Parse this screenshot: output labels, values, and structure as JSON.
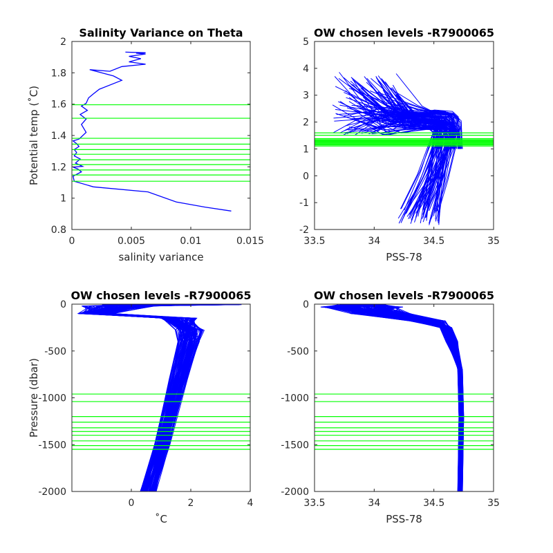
{
  "colors": {
    "profile": "#0000ff",
    "level": "#00ff00",
    "axis": "#262626",
    "background": "#ffffff"
  },
  "chart_data": [
    {
      "type": "line",
      "title": "Salinity Variance on Theta",
      "xlabel": "salinity variance",
      "ylabel": "Potential temp (˚C)",
      "xlim": [
        0,
        0.015
      ],
      "ylim": [
        0.8,
        2
      ],
      "xticks": [
        "0",
        "0.005",
        "0.01",
        "0.015"
      ],
      "yticks": [
        "0.8",
        "1",
        "1.2",
        "1.4",
        "1.6",
        "1.8",
        "2"
      ],
      "grid": false,
      "series": [
        {
          "color": "#0000ff",
          "points": [
            [
              0.0134,
              0.918
            ],
            [
              0.0112,
              0.943
            ],
            [
              0.0088,
              0.975
            ],
            [
              0.0064,
              1.04
            ],
            [
              0.0018,
              1.072
            ],
            [
              0.0002,
              1.108
            ],
            [
              0.0001,
              1.14
            ],
            [
              0.0008,
              1.168
            ],
            [
              0.0005,
              1.186
            ],
            [
              0.0001,
              1.198
            ],
            [
              0.0009,
              1.203
            ],
            [
              0.0003,
              1.224
            ],
            [
              0.0007,
              1.25
            ],
            [
              0.0002,
              1.27
            ],
            [
              0.0004,
              1.292
            ],
            [
              0.0002,
              1.31
            ],
            [
              0.0006,
              1.33
            ],
            [
              0.0004,
              1.348
            ],
            [
              0.0001,
              1.365
            ],
            [
              0.0006,
              1.377
            ],
            [
              0.0012,
              1.42
            ],
            [
              0.0008,
              1.47
            ],
            [
              0.0012,
              1.505
            ],
            [
              0.0007,
              1.534
            ],
            [
              0.0013,
              1.56
            ],
            [
              0.0008,
              1.588
            ],
            [
              0.0012,
              1.605
            ],
            [
              0.0014,
              1.64
            ],
            [
              0.0018,
              1.665
            ],
            [
              0.0023,
              1.695
            ],
            [
              0.0042,
              1.752
            ],
            [
              0.0035,
              1.78
            ],
            [
              0.0015,
              1.82
            ],
            [
              0.0032,
              1.81
            ],
            [
              0.0042,
              1.84
            ],
            [
              0.0062,
              1.855
            ],
            [
              0.0048,
              1.87
            ],
            [
              0.0058,
              1.89
            ],
            [
              0.0048,
              1.905
            ],
            [
              0.0062,
              1.92
            ],
            [
              0.0054,
              1.925
            ],
            [
              0.0062,
              1.928
            ],
            [
              0.0045,
              1.932
            ]
          ]
        }
      ],
      "levels": [
        1.108,
        1.148,
        1.18,
        1.214,
        1.245,
        1.28,
        1.31,
        1.345,
        1.382,
        1.51,
        1.596
      ]
    },
    {
      "type": "line",
      "title": "OW chosen levels -R7900065",
      "xlabel": "PSS-78",
      "ylabel": "",
      "xlim": [
        33.5,
        35
      ],
      "ylim": [
        -2,
        5
      ],
      "xticks": [
        "33.5",
        "34",
        "34.5",
        "35"
      ],
      "yticks": [
        "-2",
        "-1",
        "0",
        "1",
        "2",
        "3",
        "4",
        "5"
      ],
      "grid": false,
      "series_description": "many theta-salinity profiles",
      "levels": [
        1.108,
        1.148,
        1.18,
        1.214,
        1.245,
        1.28,
        1.31,
        1.345,
        1.382,
        1.51,
        1.596
      ]
    },
    {
      "type": "line",
      "title": "OW chosen levels -R7900065",
      "xlabel": "˚C",
      "ylabel": "Pressure (dbar)",
      "xlim": [
        -2,
        4
      ],
      "ylim": [
        -2000,
        0
      ],
      "xticks": [
        "0",
        "2",
        "4"
      ],
      "yticks": [
        "-2000",
        "-1500",
        "-1000",
        "-500",
        "0"
      ],
      "grid": false,
      "levels": [
        -960,
        -1040,
        -1200,
        -1260,
        -1320,
        -1360,
        -1400,
        -1460,
        -1510,
        -1550
      ]
    },
    {
      "type": "line",
      "title": "OW chosen levels -R7900065",
      "xlabel": "PSS-78",
      "ylabel": "",
      "xlim": [
        33.5,
        35
      ],
      "ylim": [
        -2000,
        0
      ],
      "xticks": [
        "33.5",
        "34",
        "34.5",
        "35"
      ],
      "yticks": [
        "-2000",
        "-1500",
        "-1000",
        "-500",
        "0"
      ],
      "grid": false,
      "levels": [
        -960,
        -1040,
        -1200,
        -1260,
        -1320,
        -1360,
        -1400,
        -1460,
        -1510,
        -1550
      ]
    }
  ]
}
